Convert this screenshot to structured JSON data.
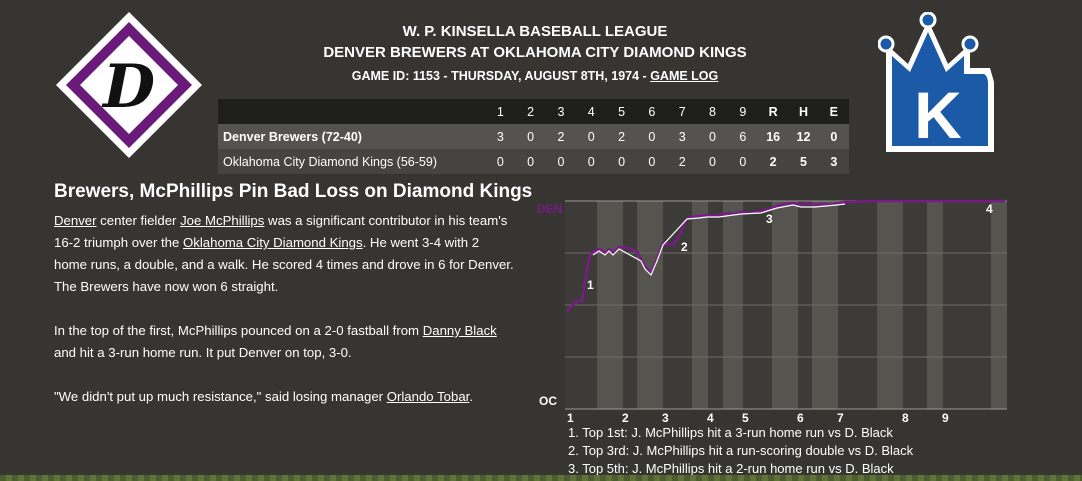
{
  "header": {
    "league": "W. P. KINSELLA BASEBALL LEAGUE",
    "matchup": "DENVER BREWERS AT OKLAHOMA CITY DIAMOND KINGS",
    "game_info": "GAME ID: 1153 - THURSDAY, AUGUST 8TH, 1974 - ",
    "game_log_link": "GAME LOG"
  },
  "logos": {
    "left_letter": "D",
    "right_letter": "K",
    "left_color": "#6a1b7a",
    "right_color": "#1a5aa6"
  },
  "linescore": {
    "innings": [
      "1",
      "2",
      "3",
      "4",
      "5",
      "6",
      "7",
      "8",
      "9"
    ],
    "totals_headers": [
      "R",
      "H",
      "E"
    ],
    "rows": [
      {
        "team": "Denver Brewers (72-40)",
        "innings": [
          "3",
          "0",
          "2",
          "0",
          "2",
          "0",
          "3",
          "0",
          "6"
        ],
        "r": "16",
        "h": "12",
        "e": "0"
      },
      {
        "team": "Oklahoma City Diamond Kings (56-59)",
        "innings": [
          "0",
          "0",
          "0",
          "0",
          "0",
          "0",
          "2",
          "0",
          "0"
        ],
        "r": "2",
        "h": "5",
        "e": "3"
      }
    ]
  },
  "article": {
    "headline": "Brewers, McPhillips Pin Bad Loss on Diamond Kings",
    "p1": {
      "a": "Denver",
      "b": " center fielder ",
      "c": "Joe McPhillips",
      "d": " was a significant contributor in his team's 16-2 triumph over the ",
      "e": "Oklahoma City Diamond Kings",
      "f": ". He went 3-4 with 2 home runs, a double, and a walk. He scored 4 times and drove in 6 for Denver. The Brewers have now won 6 straight."
    },
    "p2": {
      "a": "In the top of the first, McPhillips pounced on a 2-0 fastball from ",
      "b": "Danny Black",
      "c": " and hit a 3-run home run. It put Denver on top, 3-0."
    },
    "p3": {
      "a": "\"We didn't put up much resistance,\" said losing manager ",
      "b": "Orlando Tobar",
      "c": "."
    }
  },
  "win_prob_chart": {
    "top_label": "DEN",
    "bottom_label": "OC",
    "inning_labels": [
      "1",
      "2",
      "3",
      "4",
      "5",
      "6",
      "7",
      "8",
      "9"
    ],
    "markers": [
      "1",
      "2",
      "3",
      "4"
    ],
    "line_color": "#7a1a86"
  },
  "key_plays": [
    "1. Top 1st: J. McPhillips hit a 3-run home run vs D. Black",
    "2. Top 3rd: J. McPhillips hit a run-scoring double vs D. Black",
    "3. Top 5th: J. McPhillips hit a 2-run home run vs D. Black"
  ]
}
